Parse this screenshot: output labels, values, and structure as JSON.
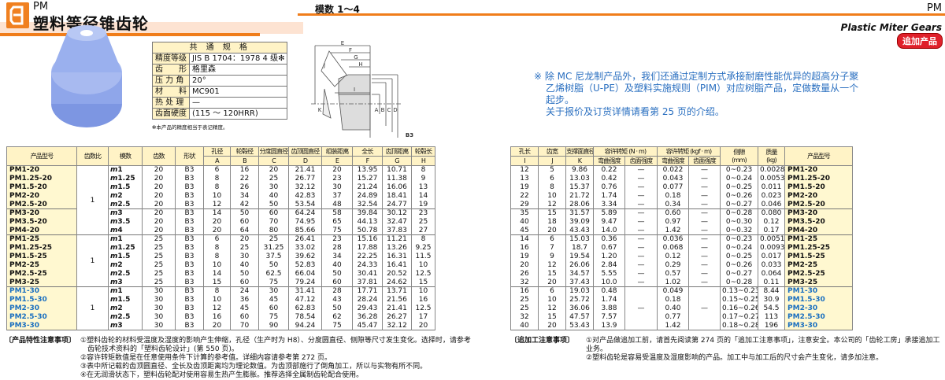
{
  "header": {
    "series": "PM",
    "title": "塑料等径锥齿轮",
    "module_range": "模数 1～4",
    "series_right": "PM",
    "english_title": "Plastic Miter Gears",
    "badge": "追加产品"
  },
  "colors": {
    "accent": "#f07d1a",
    "header_cell": "#fff3c6",
    "name_cell": "#fff8d0",
    "blue_text": "#1a6fc0",
    "badge": "#e0202a",
    "gear": "#8fa6ea"
  },
  "spec": {
    "title": "共 通 规 格",
    "rows": [
      {
        "k": "精度等级",
        "v": "JIS B 1704：1978 4 级✻"
      },
      {
        "k": "齿　　形",
        "v": "格里森"
      },
      {
        "k": "压 力 角",
        "v": "20°"
      },
      {
        "k": "材　　料",
        "v": "MC901"
      },
      {
        "k": "热 处 理",
        "v": "—"
      },
      {
        "k": "齿面硬度",
        "v": "(115 ～ 120HRR)"
      }
    ],
    "note": "✻本产品的精度相当于表记精度。"
  },
  "diagram": {
    "labels": [
      "E",
      "F",
      "G",
      "H",
      "I",
      "J",
      "K",
      "A",
      "B",
      "C",
      "D"
    ],
    "shape": "B3"
  },
  "notice": [
    "※ 除 MC 尼龙制产品外，我们还通过定制方式承接耐磨性能优异的超高分子聚",
    "乙烯树脂（U-PE）及塑料实施规则（PIM）对应树脂产品，定做数量从一个",
    "起步。",
    "关于报价及订货详情请看第 25 页的介绍。"
  ],
  "left_table": {
    "headers": [
      "产品型号",
      "齿数比",
      "模数",
      "齿数",
      "形状"
    ],
    "dim_headers": [
      [
        "孔径",
        "A"
      ],
      [
        "轮毂径",
        "B"
      ],
      [
        "分度圆直径",
        "C"
      ],
      [
        "齿顶圆直径",
        "D"
      ],
      [
        "组装距离",
        "E"
      ],
      [
        "全长",
        "F"
      ],
      [
        "齿顶距离",
        "G"
      ],
      [
        "轮毂长",
        "H"
      ]
    ]
  },
  "right_table": {
    "dim_headers": [
      [
        "孔长",
        "I"
      ],
      [
        "齿宽",
        "J"
      ],
      [
        "支撑面直径",
        "K"
      ]
    ],
    "torque_nm": "容许转矩 (N · m)",
    "torque_kgf": "容许转矩 (kgf · m)",
    "bend": "弯曲强度",
    "surface": "齿面强度",
    "backlash": [
      "侧隙",
      "(mm)"
    ],
    "mass": [
      "质量",
      "(kg)"
    ],
    "model": "产品型号"
  },
  "groups": [
    {
      "ratio": "1",
      "blue": false,
      "blocks": [
        [
          {
            "model": "PM1-20",
            "m": "m1",
            "z": "20",
            "shape": "B3",
            "dims": [
              "6",
              "16",
              "20",
              "21.41",
              "20",
              "13.95",
              "10.71",
              "8"
            ],
            "r": [
              "12",
              "5",
              "9.86",
              "0.22",
              "—",
              "0.022",
              "—",
              "0~0.23",
              "0.0028"
            ]
          },
          {
            "model": "PM1.25-20",
            "m": "m1.25",
            "z": "20",
            "shape": "B3",
            "dims": [
              "8",
              "22",
              "25",
              "26.77",
              "23",
              "15.27",
              "11.38",
              "9"
            ],
            "r": [
              "13",
              "6",
              "13.03",
              "0.42",
              "—",
              "0.043",
              "—",
              "0~0.24",
              "0.0053"
            ]
          },
          {
            "model": "PM1.5-20",
            "m": "m1.5",
            "z": "20",
            "shape": "B3",
            "dims": [
              "8",
              "26",
              "30",
              "32.12",
              "30",
              "21.24",
              "16.06",
              "13"
            ],
            "r": [
              "19",
              "8",
              "15.37",
              "0.76",
              "—",
              "0.077",
              "—",
              "0~0.25",
              "0.011"
            ]
          },
          {
            "model": "PM2-20",
            "m": "m2",
            "z": "20",
            "shape": "B3",
            "dims": [
              "10",
              "34",
              "40",
              "42.83",
              "37",
              "24.89",
              "18.41",
              "14"
            ],
            "r": [
              "22",
              "10",
              "21.72",
              "1.74",
              "—",
              "0.18",
              "—",
              "0~0.26",
              "0.023"
            ]
          },
          {
            "model": "PM2.5-20",
            "m": "m2.5",
            "z": "20",
            "shape": "B3",
            "dims": [
              "12",
              "42",
              "50",
              "53.54",
              "48",
              "32.54",
              "24.77",
              "19"
            ],
            "r": [
              "29",
              "12",
              "28.06",
              "3.34",
              "—",
              "0.34",
              "—",
              "0~0.27",
              "0.046"
            ]
          }
        ],
        [
          {
            "model": "PM3-20",
            "m": "m3",
            "z": "20",
            "shape": "B3",
            "dims": [
              "14",
              "50",
              "60",
              "64.24",
              "58",
              "39.84",
              "30.12",
              "23"
            ],
            "r": [
              "35",
              "15",
              "31.57",
              "5.89",
              "—",
              "0.60",
              "—",
              "0~0.28",
              "0.080"
            ]
          },
          {
            "model": "PM3.5-20",
            "m": "m3.5",
            "z": "20",
            "shape": "B3",
            "dims": [
              "20",
              "60",
              "70",
              "74.95",
              "65",
              "44.13",
              "32.47",
              "25"
            ],
            "r": [
              "40",
              "18",
              "39.09",
              "9.47",
              "—",
              "0.97",
              "—",
              "0~0.30",
              "0.12"
            ]
          },
          {
            "model": "PM4-20",
            "m": "m4",
            "z": "20",
            "shape": "B3",
            "dims": [
              "20",
              "64",
              "80",
              "85.66",
              "75",
              "50.78",
              "37.83",
              "27"
            ],
            "r": [
              "45",
              "20",
              "43.43",
              "14.0",
              "—",
              "1.42",
              "—",
              "0~0.32",
              "0.17"
            ]
          }
        ]
      ]
    },
    {
      "ratio": "1",
      "blue": false,
      "blocks": [
        [
          {
            "model": "PM1-25",
            "m": "m1",
            "z": "25",
            "shape": "B3",
            "dims": [
              "6",
              "20",
              "25",
              "26.41",
              "23",
              "15.16",
              "11.21",
              "8"
            ],
            "r": [
              "14",
              "6",
              "15.03",
              "0.36",
              "—",
              "0.036",
              "—",
              "0~0.23",
              "0.0051"
            ]
          },
          {
            "model": "PM1.25-25",
            "m": "m1.25",
            "z": "25",
            "shape": "B3",
            "dims": [
              "8",
              "25",
              "31.25",
              "33.02",
              "28",
              "17.88",
              "13.26",
              "9.25"
            ],
            "r": [
              "16",
              "7",
              "18.7",
              "0.67",
              "—",
              "0.068",
              "—",
              "0~0.24",
              "0.0093"
            ]
          },
          {
            "model": "PM1.5-25",
            "m": "m1.5",
            "z": "25",
            "shape": "B3",
            "dims": [
              "8",
              "30",
              "37.5",
              "39.62",
              "34",
              "22.25",
              "16.31",
              "11.5"
            ],
            "r": [
              "19",
              "9",
              "19.54",
              "1.20",
              "—",
              "0.12",
              "—",
              "0~0.25",
              "0.017"
            ]
          },
          {
            "model": "PM2-25",
            "m": "m2",
            "z": "25",
            "shape": "B3",
            "dims": [
              "10",
              "40",
              "50",
              "52.83",
              "40",
              "24.33",
              "16.41",
              "10"
            ],
            "r": [
              "20",
              "12",
              "26.06",
              "2.84",
              "—",
              "0.29",
              "—",
              "0~0.26",
              "0.033"
            ]
          },
          {
            "model": "PM2.5-25",
            "m": "m2.5",
            "z": "25",
            "shape": "B3",
            "dims": [
              "14",
              "50",
              "62.5",
              "66.04",
              "50",
              "30.41",
              "20.52",
              "12.5"
            ],
            "r": [
              "26",
              "15",
              "34.57",
              "5.55",
              "—",
              "0.57",
              "—",
              "0~0.27",
              "0.064"
            ]
          },
          {
            "model": "PM3-25",
            "m": "m3",
            "z": "25",
            "shape": "B3",
            "dims": [
              "15",
              "60",
              "75",
              "79.24",
              "60",
              "37.81",
              "24.62",
              "15"
            ],
            "r": [
              "32",
              "20",
              "37.43",
              "10.0",
              "—",
              "1.02",
              "—",
              "0~0.28",
              "0.11"
            ]
          }
        ]
      ]
    },
    {
      "ratio": "1",
      "blue": true,
      "blocks": [
        [
          {
            "model": "PM1-30",
            "m": "m1",
            "z": "30",
            "shape": "B3",
            "dims": [
              "8",
              "24",
              "30",
              "31.41",
              "28",
              "17.71",
              "13.71",
              "10"
            ],
            "r": [
              "16",
              "6",
              "19.03",
              "0.48",
              "",
              "0.049",
              "",
              "0.13~0.23",
              "8.44"
            ]
          },
          {
            "model": "PM1.5-30",
            "m": "m1.5",
            "z": "30",
            "shape": "B3",
            "dims": [
              "10",
              "36",
              "45",
              "47.12",
              "43",
              "28.24",
              "21.56",
              "16"
            ],
            "r": [
              "25",
              "10",
              "25.72",
              "1.74",
              "",
              "0.18",
              "",
              "0.15~0.25",
              "30.9"
            ]
          },
          {
            "model": "PM2-30",
            "m": "m2",
            "z": "30",
            "shape": "B3",
            "dims": [
              "12",
              "45",
              "60",
              "62.83",
              "50",
              "29.43",
              "21.41",
              "12.5"
            ],
            "r": [
              "25",
              "12",
              "36.06",
              "3.88",
              "—",
              "0.40",
              "—",
              "0.16~0.26",
              "54.5"
            ]
          },
          {
            "model": "PM2.5-30",
            "m": "m2.5",
            "z": "30",
            "shape": "B3",
            "dims": [
              "16",
              "60",
              "75",
              "78.54",
              "62",
              "36.28",
              "26.27",
              "17"
            ],
            "r": [
              "32",
              "15",
              "47.57",
              "7.57",
              "",
              "0.77",
              "",
              "0.17~0.27",
              "113"
            ]
          },
          {
            "model": "PM3-30",
            "m": "m3",
            "z": "30",
            "shape": "B3",
            "dims": [
              "20",
              "70",
              "90",
              "94.24",
              "75",
              "45.47",
              "32.12",
              "20"
            ],
            "r": [
              "40",
              "20",
              "53.43",
              "13.9",
              "",
              "1.42",
              "",
              "0.18~0.28",
              "196"
            ]
          }
        ]
      ]
    }
  ],
  "notes_left": {
    "label": "〔产品特性注意事项〕",
    "items": [
      "①塑料齿轮的材料受温度及湿度的影响产生伸缩，孔径（生产时为 H8）、分度圆直径、侧隙等尺寸发生变化。选择时，请参考",
      "　齿轮技术资料的「塑料齿轮设计」(第 550 页)。",
      "②容许转矩数值是在任意使用条件下计算的参考值。详细内容请参考第 272 页。",
      "③表中所记载的齿顶圆直径、全长及齿顶距离均为理论数值。为齿顶部施行了倒角加工，所以与实物有所不同。",
      "④在无润滑状态下，塑料齿轮配对使用容易生热产生膨胀。推荐选择全属制齿轮配合使用。"
    ]
  },
  "notes_right": {
    "label": "〔追加工注意事项〕",
    "items": [
      "①对产品做追加工前，请首先阅读第 274 页的「追加工注意事项」，注意安全。本公司的「齿轮工房」承接追加工业务。",
      "②塑料齿轮是容易受温度及湿度影响的产品。加工中与加工后的尺寸会产生变化，请多加注意。"
    ]
  }
}
